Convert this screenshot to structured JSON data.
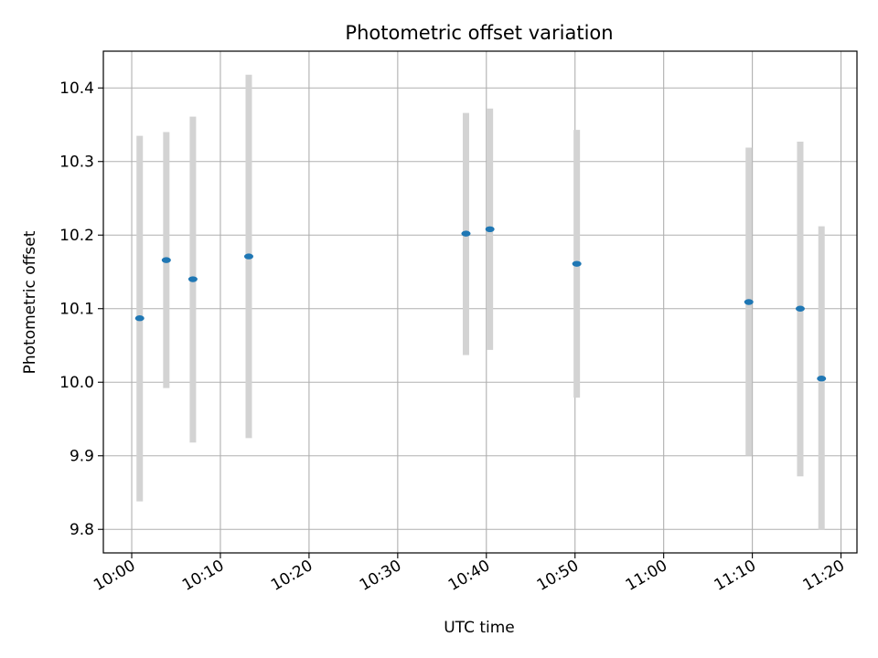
{
  "chart_data": {
    "type": "scatter",
    "title": "Photometric offset variation",
    "xlabel": "UTC time",
    "ylabel": "Photometric offset",
    "x_range_minutes": [
      -3.2,
      81.8
    ],
    "ylim": [
      9.768,
      10.45
    ],
    "grid": true,
    "x_tick_values_minutes": [
      0,
      10,
      20,
      30,
      40,
      50,
      60,
      70,
      80
    ],
    "x_tick_labels": [
      "10:00",
      "10:10",
      "10:20",
      "10:30",
      "10:40",
      "10:50",
      "11:00",
      "11:10",
      "11:20"
    ],
    "y_tick_values": [
      9.8,
      9.9,
      10.0,
      10.1,
      10.2,
      10.3,
      10.4
    ],
    "y_tick_labels": [
      "9.8",
      "9.9",
      "10.0",
      "10.1",
      "10.2",
      "10.3",
      "10.4"
    ],
    "series": [
      {
        "name": "offset",
        "marker_color": "#1f77b4",
        "errorbar_color": "#d3d3d3",
        "points": [
          {
            "t_minutes": 0.9,
            "y": 10.087,
            "err_low": 9.838,
            "err_high": 10.335
          },
          {
            "t_minutes": 3.9,
            "y": 10.166,
            "err_low": 9.992,
            "err_high": 10.34
          },
          {
            "t_minutes": 6.9,
            "y": 10.14,
            "err_low": 9.918,
            "err_high": 10.361
          },
          {
            "t_minutes": 13.2,
            "y": 10.171,
            "err_low": 9.924,
            "err_high": 10.418
          },
          {
            "t_minutes": 37.7,
            "y": 10.202,
            "err_low": 10.037,
            "err_high": 10.366
          },
          {
            "t_minutes": 40.4,
            "y": 10.208,
            "err_low": 10.044,
            "err_high": 10.372
          },
          {
            "t_minutes": 50.2,
            "y": 10.161,
            "err_low": 9.979,
            "err_high": 10.343
          },
          {
            "t_minutes": 69.6,
            "y": 10.109,
            "err_low": 9.9,
            "err_high": 10.319
          },
          {
            "t_minutes": 75.4,
            "y": 10.1,
            "err_low": 9.872,
            "err_high": 10.327
          },
          {
            "t_minutes": 77.8,
            "y": 10.005,
            "err_low": 9.799,
            "err_high": 10.212
          }
        ]
      }
    ]
  }
}
